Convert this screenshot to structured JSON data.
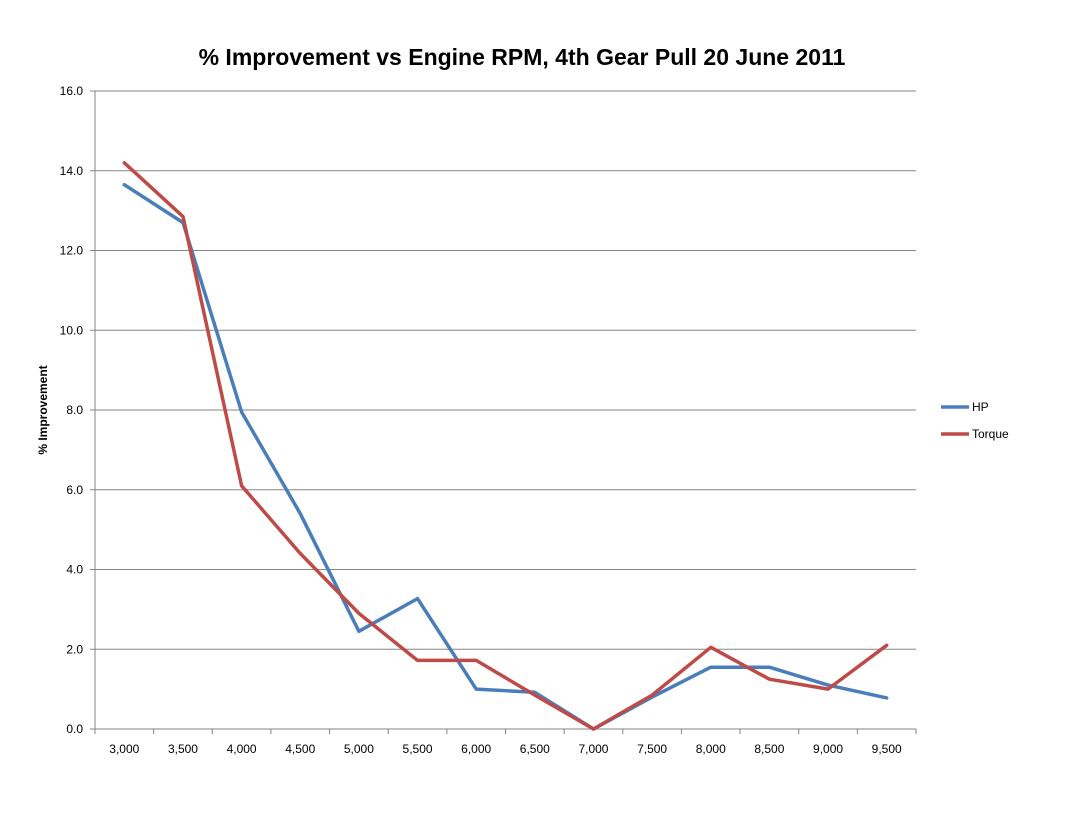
{
  "chart_data": {
    "type": "line",
    "title": "% Improvement vs Engine RPM, 4th Gear Pull  20 June 2011",
    "xlabel": "",
    "ylabel": "% Improvement",
    "ylim": [
      0,
      16
    ],
    "yticks": [
      "0.0",
      "2.0",
      "4.0",
      "6.0",
      "8.0",
      "10.0",
      "12.0",
      "14.0",
      "16.0"
    ],
    "categories": [
      "3,000",
      "3,500",
      "4,000",
      "4,500",
      "5,000",
      "5,500",
      "6,000",
      "6,500",
      "7,000",
      "7,500",
      "8,000",
      "8,500",
      "9,000",
      "9,500"
    ],
    "grid": true,
    "legend_position": "right",
    "series": [
      {
        "name": "HP",
        "color": "#4a7ebb",
        "values": [
          13.65,
          12.7,
          7.95,
          5.4,
          2.45,
          3.27,
          1.0,
          0.92,
          0.0,
          0.8,
          1.55,
          1.55,
          1.1,
          0.78
        ]
      },
      {
        "name": "Torque",
        "color": "#be4b48",
        "values": [
          14.2,
          12.85,
          6.1,
          4.4,
          2.9,
          1.72,
          1.72,
          0.85,
          0.0,
          0.85,
          2.05,
          1.25,
          1.0,
          2.1
        ]
      }
    ]
  }
}
